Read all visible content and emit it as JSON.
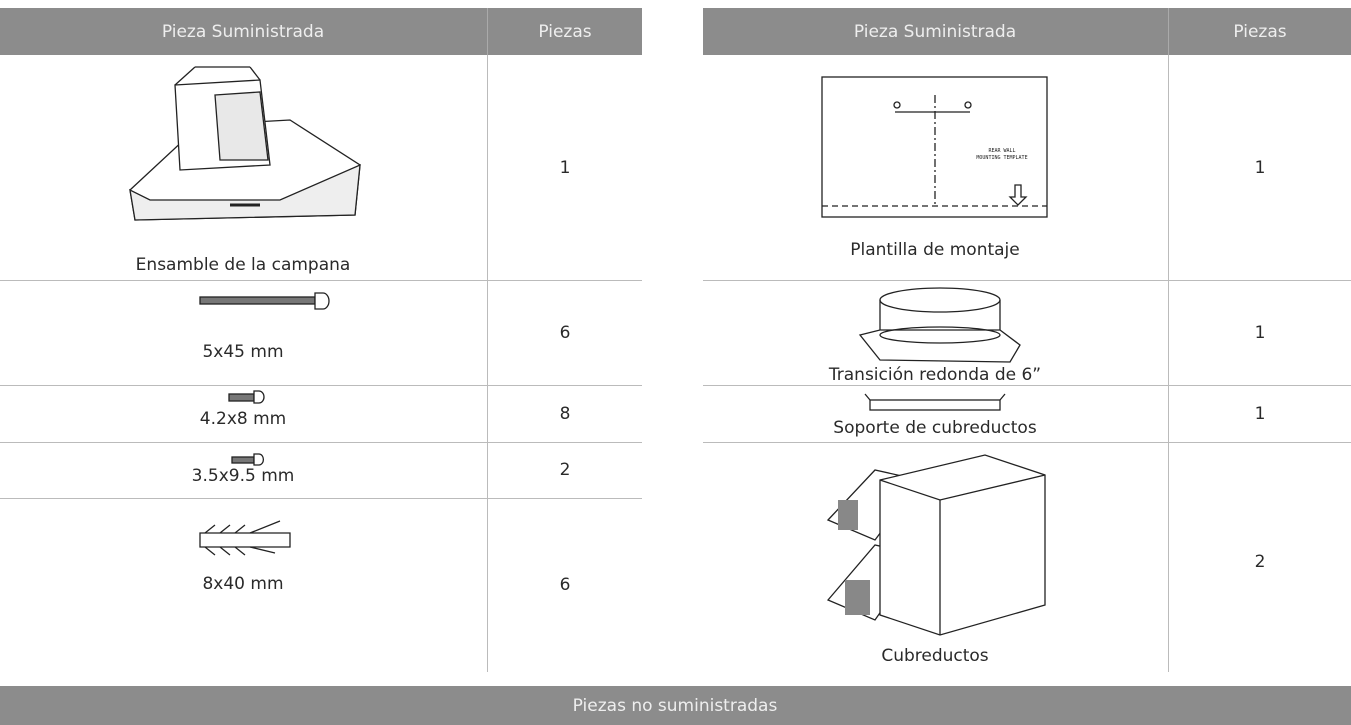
{
  "left_table": {
    "headers": [
      "Pieza Suministrada",
      "Piezas"
    ],
    "rows": [
      [
        "Ensamble de la campana",
        1
      ],
      [
        "5x45 mm",
        6
      ],
      [
        "4.2x8 mm",
        8
      ],
      [
        "3.5x9.5 mm",
        2
      ],
      [
        "8x40 mm",
        6
      ]
    ]
  },
  "right_table": {
    "headers": [
      "Pieza Suministrada",
      "Piezas"
    ],
    "template_text": [
      "REAR WALL",
      "MOUNTING TEMPLATE"
    ],
    "rows": [
      [
        "Plantilla de montaje",
        1
      ],
      [
        "Transición redonda de 6”",
        1
      ],
      [
        "Soporte de cubreductos",
        1
      ],
      [
        "Cubreductos",
        2
      ]
    ]
  },
  "footer_header": "Piezas no suministradas"
}
